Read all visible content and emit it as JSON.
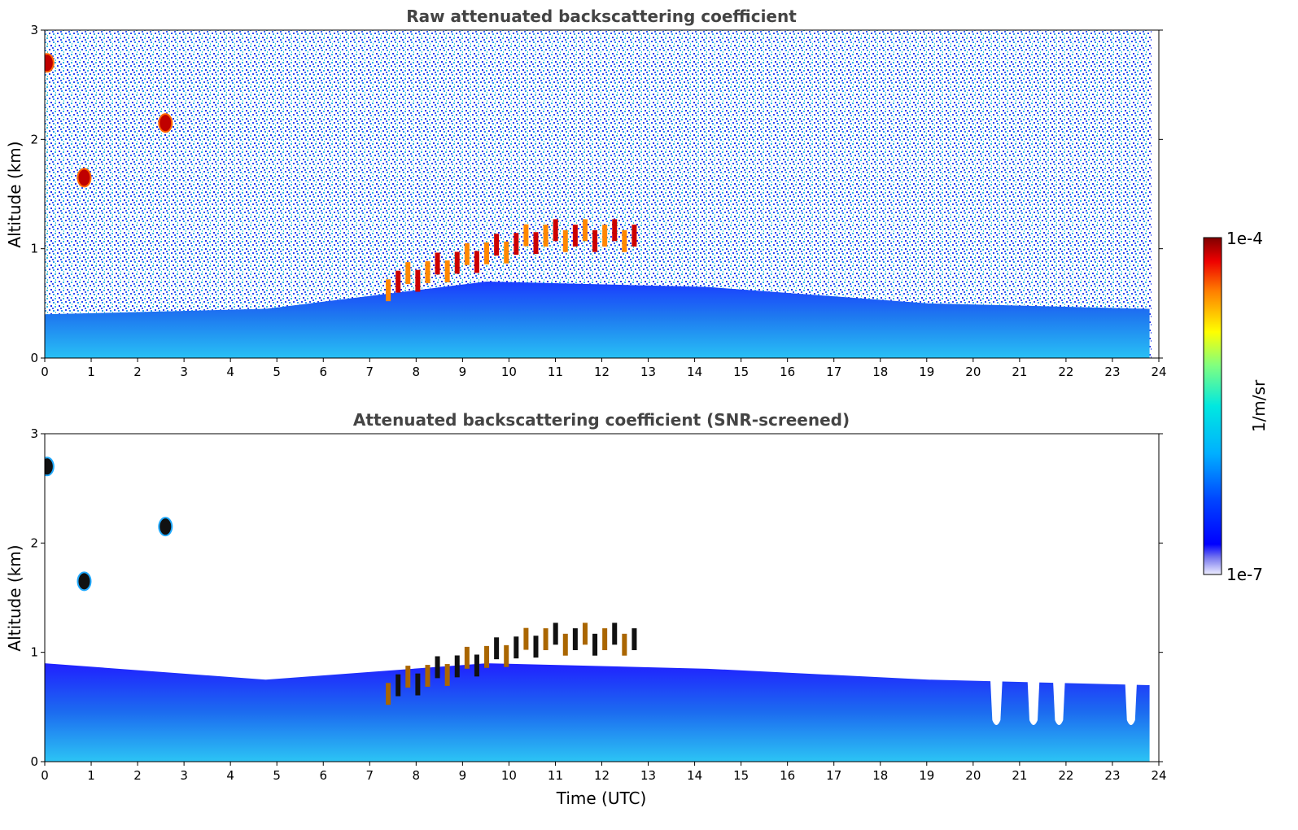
{
  "chart_data": [
    {
      "type": "heatmap",
      "title": "Raw attenuated backscattering coefficient",
      "xlabel": "",
      "ylabel": "Altitude (km)",
      "xlim": [
        0,
        24
      ],
      "ylim": [
        0,
        3
      ],
      "x_ticks": [
        "0",
        "1",
        "2",
        "3",
        "4",
        "5",
        "6",
        "7",
        "8",
        "9",
        "10",
        "11",
        "12",
        "13",
        "14",
        "15",
        "16",
        "17",
        "18",
        "19",
        "20",
        "21",
        "22",
        "23",
        "24"
      ],
      "y_ticks": [
        "0",
        "1",
        "2",
        "3"
      ],
      "screened": false,
      "features": [
        {
          "kind": "aerosol_layer",
          "x_range": [
            0,
            23.8
          ],
          "top_km": [
            0.4,
            0.45,
            0.7,
            0.65,
            0.5,
            0.45
          ]
        },
        {
          "kind": "cloud",
          "x": 0.05,
          "alt_km": 2.7
        },
        {
          "kind": "cloud",
          "x": 0.85,
          "alt_km": 1.65
        },
        {
          "kind": "cloud",
          "x": 2.6,
          "alt_km": 2.15
        },
        {
          "kind": "cloud_band",
          "x_range": [
            7.4,
            12.7
          ],
          "alt_km": [
            0.65,
            1.1
          ]
        }
      ]
    },
    {
      "type": "heatmap",
      "title": "Attenuated backscattering coefficient (SNR-screened)",
      "xlabel": "Time (UTC)",
      "ylabel": "Altitude (km)",
      "xlim": [
        0,
        24
      ],
      "ylim": [
        0,
        3
      ],
      "x_ticks": [
        "0",
        "1",
        "2",
        "3",
        "4",
        "5",
        "6",
        "7",
        "8",
        "9",
        "10",
        "11",
        "12",
        "13",
        "14",
        "15",
        "16",
        "17",
        "18",
        "19",
        "20",
        "21",
        "22",
        "23",
        "24"
      ],
      "y_ticks": [
        "0",
        "1",
        "2",
        "3"
      ],
      "screened": true,
      "features": [
        {
          "kind": "aerosol_layer",
          "x_range": [
            0,
            23.8
          ],
          "top_km": [
            0.9,
            0.75,
            0.9,
            0.85,
            0.75,
            0.7
          ]
        },
        {
          "kind": "cloud",
          "x": 0.05,
          "alt_km": 2.7
        },
        {
          "kind": "cloud",
          "x": 0.85,
          "alt_km": 1.65
        },
        {
          "kind": "cloud",
          "x": 2.6,
          "alt_km": 2.15
        },
        {
          "kind": "cloud_band",
          "x_range": [
            7.4,
            12.7
          ],
          "alt_km": [
            0.65,
            1.1
          ]
        },
        {
          "kind": "gaps",
          "x": [
            20.5,
            21.3,
            21.85,
            23.4
          ]
        }
      ]
    }
  ],
  "colorbar": {
    "label": "1/m/sr",
    "max_label": "1e-4",
    "min_label": "1e-7",
    "colormap": "jet",
    "range": [
      1e-07,
      0.0001
    ]
  }
}
